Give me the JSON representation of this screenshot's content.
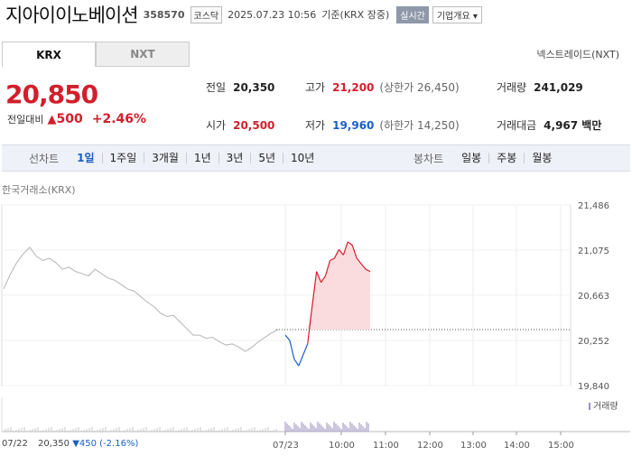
{
  "header": {
    "name": "지아이이노베이션",
    "code": "358570",
    "market": "코스닥",
    "timestamp": "2025.07.23 10:56",
    "basis": "기준(KRX 장중)",
    "live_label": "실시간",
    "corp_label": "기업개요"
  },
  "market_tabs": [
    {
      "label": "KRX",
      "active": true
    },
    {
      "label": "NXT",
      "active": false
    }
  ],
  "nxt_link": "넥스트레이드(NXT)",
  "price": {
    "current": "20,850",
    "prev_label": "전일대비",
    "change": "500",
    "percent": "+2.46%"
  },
  "stats": {
    "prev_close": {
      "label": "전일",
      "value": "20,350"
    },
    "high": {
      "label": "고가",
      "value": "21,200",
      "sub": "(상한가 26,450)"
    },
    "volume": {
      "label": "거래량",
      "value": "241,029"
    },
    "open": {
      "label": "시가",
      "value": "20,500"
    },
    "low": {
      "label": "저가",
      "value": "19,960",
      "sub": "(하한가 14,250)"
    },
    "amount": {
      "label": "거래대금",
      "value": "4,967 백만"
    }
  },
  "period_bar": {
    "line_label": "선차트",
    "line_items": [
      "1일",
      "1주일",
      "3개월",
      "1년",
      "3년",
      "5년",
      "10년"
    ],
    "active": "1일",
    "candle_label": "봉차트",
    "candle_items": [
      "일봉",
      "주봉",
      "월봉"
    ]
  },
  "chart_data": {
    "type": "line",
    "exchange_label": "한국거래소(KRX)",
    "y_ticks": [
      21486,
      21075,
      20663,
      20252,
      19840
    ],
    "ylim": [
      19840,
      21486
    ],
    "x_ticks": [
      "07/22",
      "07/23",
      "10:00",
      "11:00",
      "12:00",
      "13:00",
      "14:00",
      "15:00"
    ],
    "prev_close": 20350,
    "volume_label": "거래량",
    "series": [
      {
        "values": [
          20720,
          20850,
          20960,
          21040,
          21100,
          21020,
          20980,
          21000,
          20960,
          20900,
          20920,
          20880,
          20860,
          20840,
          20900,
          20860,
          20820,
          20800,
          20760,
          20720,
          20700,
          20650,
          20600,
          20560,
          20500,
          20470,
          20480,
          20420,
          20360,
          20300,
          20300,
          20270,
          20280,
          20240,
          20210,
          20220,
          20190,
          20150,
          20190,
          20240,
          20280,
          20320,
          20350
        ]
      },
      {
        "values": [
          20300,
          20250,
          20080,
          20020,
          20120,
          20220,
          20560,
          20880,
          20780,
          20840,
          20980,
          21000,
          21080,
          21030,
          21150,
          21120,
          21000,
          20950,
          20900,
          20880
        ]
      }
    ],
    "footer": {
      "date": "07/22",
      "close": "20,350",
      "change": "▼450",
      "percent": "(-2.16%)"
    }
  },
  "colors": {
    "up": "#d21f2b",
    "down": "#1a5fc4",
    "prev_line": "#bbbbbb",
    "fill_up": "#fbdcde"
  }
}
